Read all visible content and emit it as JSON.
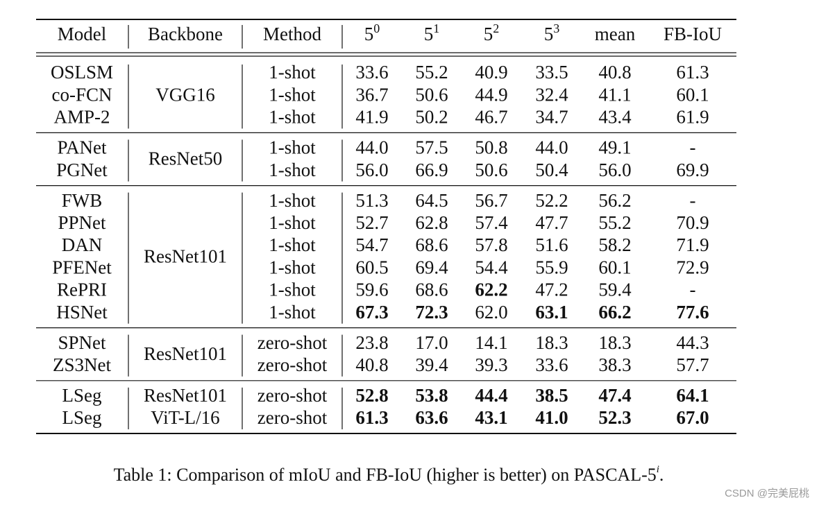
{
  "table": {
    "headers": [
      "Model",
      "Backbone",
      "Method",
      "5",
      "5",
      "5",
      "5",
      "mean",
      "FB-IoU"
    ],
    "header_superscripts": [
      "",
      "",
      "",
      "0",
      "1",
      "2",
      "3",
      "",
      ""
    ],
    "groups": [
      {
        "backbone": "VGG16",
        "rows": [
          {
            "model": "OSLSM",
            "method": "1-shot",
            "values": [
              "33.6",
              "55.2",
              "40.9",
              "33.5",
              "40.8",
              "61.3"
            ],
            "bold": []
          },
          {
            "model": "co-FCN",
            "method": "1-shot",
            "values": [
              "36.7",
              "50.6",
              "44.9",
              "32.4",
              "41.1",
              "60.1"
            ],
            "bold": []
          },
          {
            "model": "AMP-2",
            "method": "1-shot",
            "values": [
              "41.9",
              "50.2",
              "46.7",
              "34.7",
              "43.4",
              "61.9"
            ],
            "bold": []
          }
        ]
      },
      {
        "backbone": "ResNet50",
        "rows": [
          {
            "model": "PANet",
            "method": "1-shot",
            "values": [
              "44.0",
              "57.5",
              "50.8",
              "44.0",
              "49.1",
              "-"
            ],
            "bold": []
          },
          {
            "model": "PGNet",
            "method": "1-shot",
            "values": [
              "56.0",
              "66.9",
              "50.6",
              "50.4",
              "56.0",
              "69.9"
            ],
            "bold": []
          }
        ]
      },
      {
        "backbone": "ResNet101",
        "rows": [
          {
            "model": "FWB",
            "method": "1-shot",
            "values": [
              "51.3",
              "64.5",
              "56.7",
              "52.2",
              "56.2",
              "-"
            ],
            "bold": []
          },
          {
            "model": "PPNet",
            "method": "1-shot",
            "values": [
              "52.7",
              "62.8",
              "57.4",
              "47.7",
              "55.2",
              "70.9"
            ],
            "bold": []
          },
          {
            "model": "DAN",
            "method": "1-shot",
            "values": [
              "54.7",
              "68.6",
              "57.8",
              "51.6",
              "58.2",
              "71.9"
            ],
            "bold": []
          },
          {
            "model": "PFENet",
            "method": "1-shot",
            "values": [
              "60.5",
              "69.4",
              "54.4",
              "55.9",
              "60.1",
              "72.9"
            ],
            "bold": []
          },
          {
            "model": "RePRI",
            "method": "1-shot",
            "values": [
              "59.6",
              "68.6",
              "62.2",
              "47.2",
              "59.4",
              "-"
            ],
            "bold": [
              2
            ]
          },
          {
            "model": "HSNet",
            "method": "1-shot",
            "values": [
              "67.3",
              "72.3",
              "62.0",
              "63.1",
              "66.2",
              "77.6"
            ],
            "bold": [
              0,
              1,
              3,
              4,
              5
            ]
          }
        ]
      },
      {
        "backbone": "ResNet101",
        "rows": [
          {
            "model": "SPNet",
            "method": "zero-shot",
            "values": [
              "23.8",
              "17.0",
              "14.1",
              "18.3",
              "18.3",
              "44.3"
            ],
            "bold": []
          },
          {
            "model": "ZS3Net",
            "method": "zero-shot",
            "values": [
              "40.8",
              "39.4",
              "39.3",
              "33.6",
              "38.3",
              "57.7"
            ],
            "bold": []
          }
        ]
      },
      {
        "backbone": null,
        "rows": [
          {
            "model": "LSeg",
            "backbone": "ResNet101",
            "method": "zero-shot",
            "values": [
              "52.8",
              "53.8",
              "44.4",
              "38.5",
              "47.4",
              "64.1"
            ],
            "bold": [
              0,
              1,
              2,
              3,
              4,
              5
            ]
          },
          {
            "model": "LSeg",
            "backbone": "ViT-L/16",
            "method": "zero-shot",
            "values": [
              "61.3",
              "63.6",
              "43.1",
              "41.0",
              "52.3",
              "67.0"
            ],
            "bold": [
              0,
              1,
              2,
              3,
              4,
              5
            ]
          }
        ]
      }
    ]
  },
  "caption": {
    "text": "Table 1: Comparison of mIoU and FB-IoU (higher is better) on PASCAL-5",
    "superscript": "i",
    "end": "."
  },
  "watermark": "CSDN @完美屁桃"
}
